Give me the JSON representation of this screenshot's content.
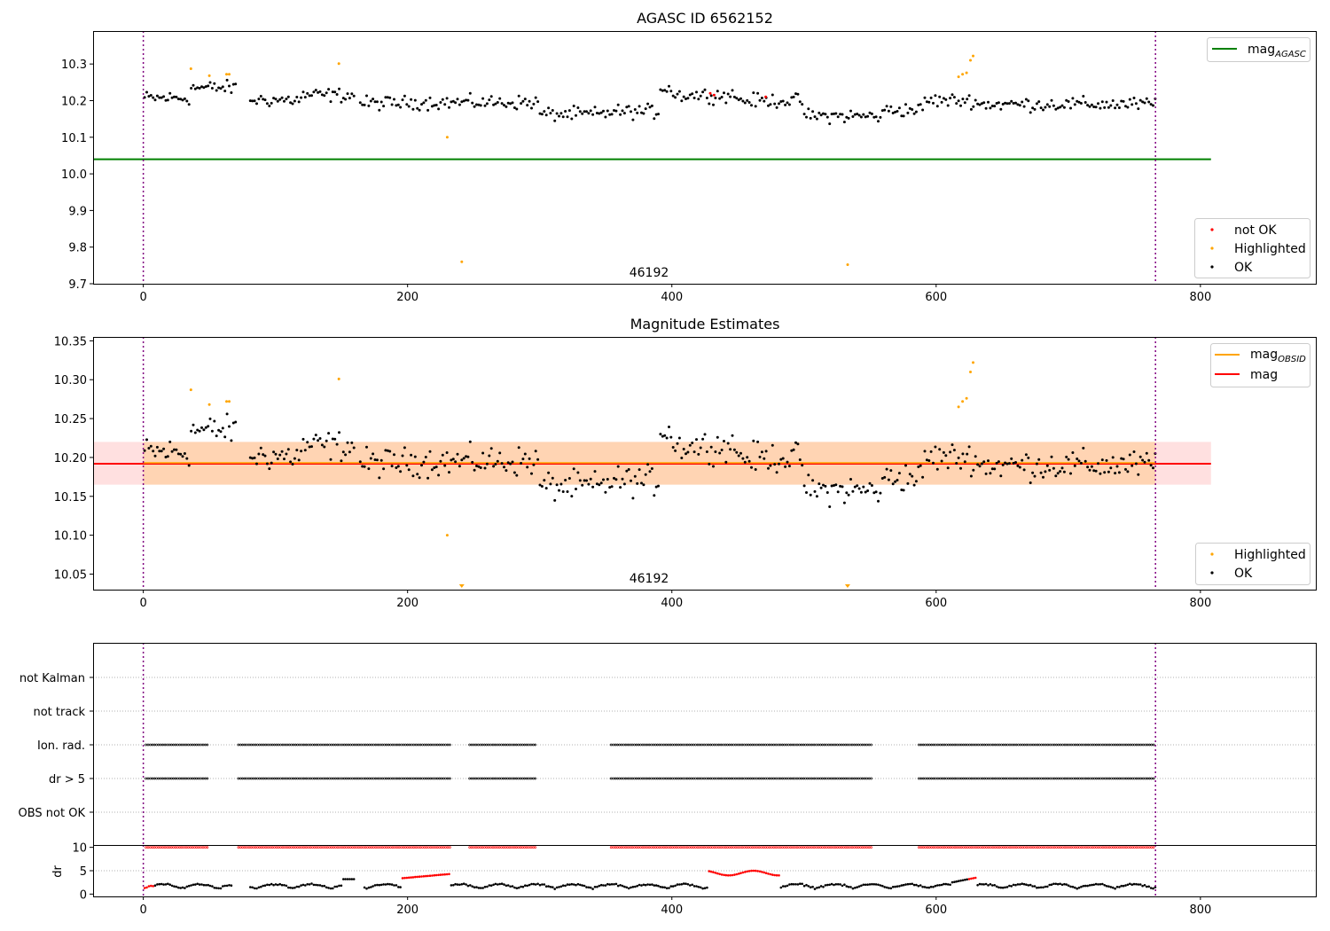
{
  "chart_data": [
    {
      "type": "scatter",
      "title": "AGASC ID 6562152",
      "xlim": [
        -38,
        888
      ],
      "ylim": [
        9.7,
        10.39
      ],
      "xticks": [
        0,
        200,
        400,
        600,
        800
      ],
      "yticks": [
        9.7,
        9.8,
        9.9,
        10.0,
        10.1,
        10.2,
        10.3
      ],
      "ytick_labels": [
        "9.7",
        "9.8",
        "9.9",
        "10.0",
        "10.1",
        "10.2",
        "10.3"
      ],
      "hline": {
        "name": "mag_AGASC",
        "y": 10.04,
        "x_range": [
          -38,
          808
        ],
        "color": "#008000"
      },
      "vlines": [
        0,
        766
      ],
      "annotation": {
        "text": "46192",
        "x": 383,
        "y": 9.72
      },
      "legends": [
        {
          "position": "upper-right",
          "entries": [
            {
              "label": "mag",
              "sub": "AGASC",
              "kind": "line",
              "color": "#008000"
            }
          ]
        },
        {
          "position": "lower-right",
          "entries": [
            {
              "label": "not OK",
              "kind": "point",
              "color": "#ff0000"
            },
            {
              "label": "Highlighted",
              "kind": "point",
              "color": "#ffa500"
            },
            {
              "label": "OK",
              "kind": "point",
              "color": "#000000"
            }
          ]
        }
      ],
      "highlighted": [
        [
          36,
          10.287
        ],
        [
          50,
          10.268
        ],
        [
          63,
          10.272
        ],
        [
          65,
          10.272
        ],
        [
          148,
          10.301
        ],
        [
          230,
          10.1
        ],
        [
          241,
          9.76
        ],
        [
          533,
          9.752
        ],
        [
          617,
          10.265
        ],
        [
          620,
          10.272
        ],
        [
          623,
          10.276
        ],
        [
          626,
          10.31
        ],
        [
          628,
          10.322
        ]
      ],
      "not_ok": [
        [
          429,
          10.22
        ],
        [
          432,
          10.215
        ],
        [
          471,
          10.21
        ]
      ]
    },
    {
      "type": "scatter",
      "title": "Magnitude Estimates",
      "xlim": [
        -38,
        888
      ],
      "ylim": [
        10.03,
        10.355
      ],
      "xticks": [
        0,
        200,
        400,
        600,
        800
      ],
      "yticks": [
        10.05,
        10.1,
        10.15,
        10.2,
        10.25,
        10.3,
        10.35
      ],
      "ytick_labels": [
        "10.05",
        "10.10",
        "10.15",
        "10.20",
        "10.25",
        "10.30",
        "10.35"
      ],
      "mag_line": {
        "y": 10.192,
        "x_range": [
          -38,
          808
        ],
        "color": "#ff0000"
      },
      "obsid_line": {
        "y": 10.193,
        "x_range": [
          0,
          766
        ],
        "color": "#ffa500"
      },
      "band_red": {
        "y_range": [
          10.165,
          10.22
        ],
        "x_range": [
          -38,
          808
        ]
      },
      "band_orange": {
        "y_range": [
          10.165,
          10.22
        ],
        "x_range": [
          0,
          766
        ]
      },
      "vlines": [
        0,
        766
      ],
      "annotation": {
        "text": "46192",
        "x": 383,
        "y": 10.041
      },
      "legends": [
        {
          "position": "upper-right",
          "entries": [
            {
              "label": "mag",
              "sub": "OBSID",
              "kind": "line",
              "color": "#ffa500"
            },
            {
              "label": "mag",
              "sub": "",
              "kind": "line",
              "color": "#ff0000"
            }
          ]
        },
        {
          "position": "lower-right",
          "entries": [
            {
              "label": "Highlighted",
              "kind": "point",
              "color": "#ffa500"
            },
            {
              "label": "OK",
              "kind": "point",
              "color": "#000000"
            }
          ]
        }
      ],
      "highlighted": [
        [
          36,
          10.287
        ],
        [
          50,
          10.268
        ],
        [
          63,
          10.272
        ],
        [
          65,
          10.272
        ],
        [
          148,
          10.301
        ],
        [
          230,
          10.1
        ],
        [
          617,
          10.265
        ],
        [
          620,
          10.272
        ],
        [
          623,
          10.276
        ],
        [
          626,
          10.31
        ],
        [
          628,
          10.322
        ]
      ],
      "clipped_low": [
        241,
        533
      ]
    },
    {
      "type": "scatter",
      "title": "",
      "xlim": [
        -38,
        888
      ],
      "flag_labels": [
        "not Kalman",
        "not track",
        "Ion. rad.",
        "dr > 5",
        "OBS not OK"
      ],
      "flag_segments": {
        "Ion. rad.": [
          [
            2,
            50
          ],
          [
            72,
            232
          ],
          [
            247,
            298
          ],
          [
            354,
            552
          ],
          [
            587,
            766
          ]
        ],
        "dr > 5": [
          [
            2,
            50
          ],
          [
            72,
            232
          ],
          [
            247,
            298
          ],
          [
            354,
            552
          ],
          [
            587,
            766
          ]
        ]
      },
      "vlines": [
        0,
        766
      ]
    },
    {
      "type": "scatter",
      "title": "",
      "xlim": [
        -38,
        888
      ],
      "ylim": [
        -0.5,
        10.5
      ],
      "ylabel": "dr",
      "yticks": [
        0,
        5,
        10
      ],
      "ytick_labels": [
        "0",
        "5",
        "10"
      ],
      "xticks": [
        0,
        200,
        400,
        600,
        800
      ],
      "flag_row_y": 10,
      "vlines": [
        0,
        766
      ]
    }
  ]
}
